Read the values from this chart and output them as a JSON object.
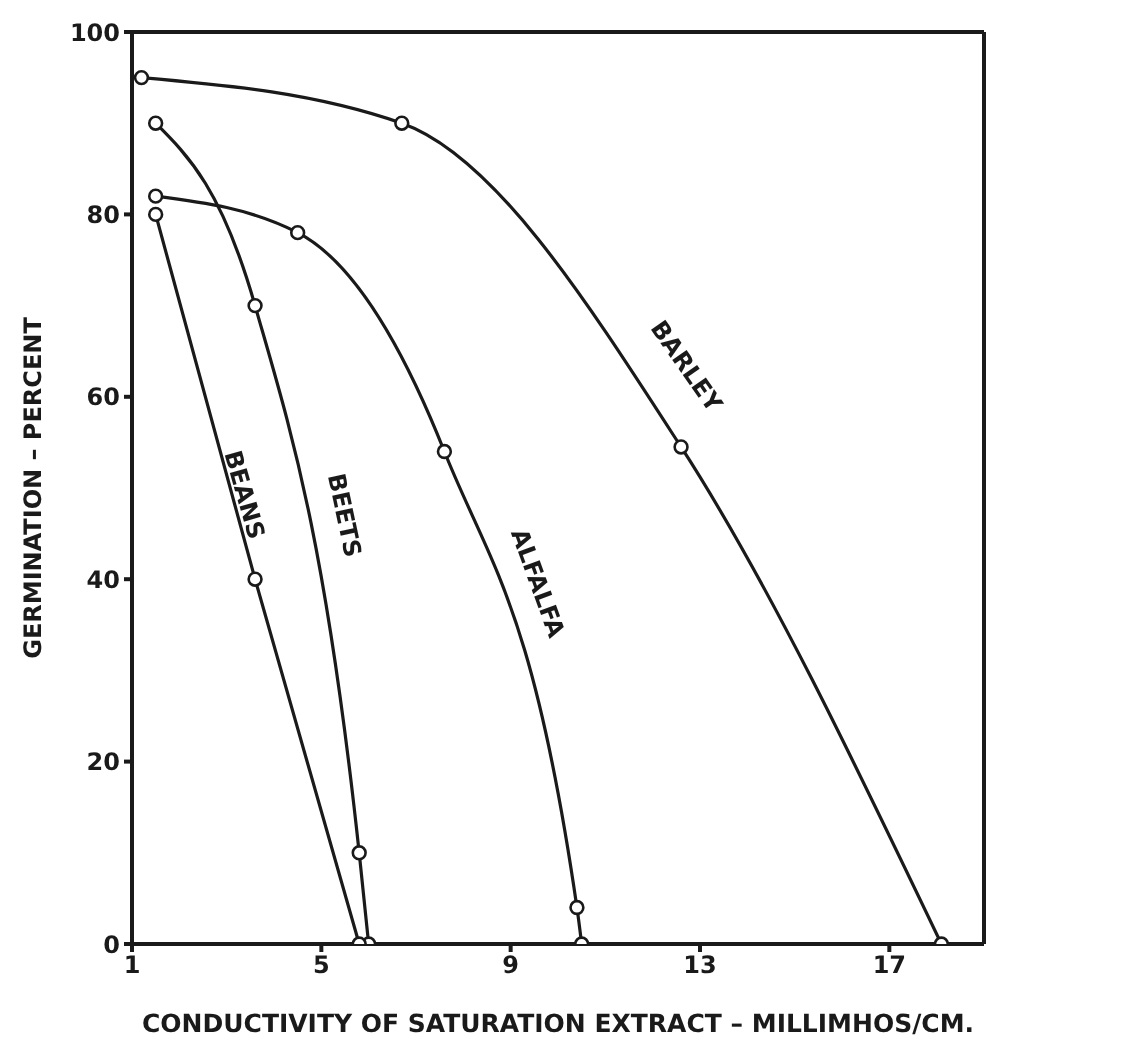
{
  "chart_data": {
    "type": "line",
    "xlabel": "CONDUCTIVITY OF SATURATION EXTRACT – MILLIMHOS/CM.",
    "ylabel": "GERMINATION – PERCENT",
    "xlim": [
      1,
      19
    ],
    "xticks": [
      1,
      5,
      9,
      13,
      17
    ],
    "ylim": [
      0,
      100
    ],
    "yticks": [
      0,
      20,
      40,
      60,
      80,
      100
    ],
    "grid": false,
    "legend": false,
    "marker": "circle",
    "line_style": "solid",
    "series": [
      {
        "name": "BARLEY",
        "color": "#1a1a1a",
        "x": [
          1.2,
          6.7,
          12.6,
          18.1
        ],
        "values": [
          95,
          90,
          54.5,
          0
        ]
      },
      {
        "name": "ALFALFA",
        "color": "#1a1a1a",
        "x": [
          1.5,
          4.5,
          7.6,
          10.4,
          10.5
        ],
        "values": [
          82,
          78,
          54,
          4,
          0
        ]
      },
      {
        "name": "BEETS",
        "color": "#1a1a1a",
        "x": [
          1.5,
          3.6,
          5.8,
          6.0
        ],
        "values": [
          90,
          70,
          10,
          0
        ]
      },
      {
        "name": "BEANS",
        "color": "#1a1a1a",
        "x": [
          1.5,
          3.6,
          5.8
        ],
        "values": [
          80,
          40,
          0
        ]
      }
    ]
  }
}
